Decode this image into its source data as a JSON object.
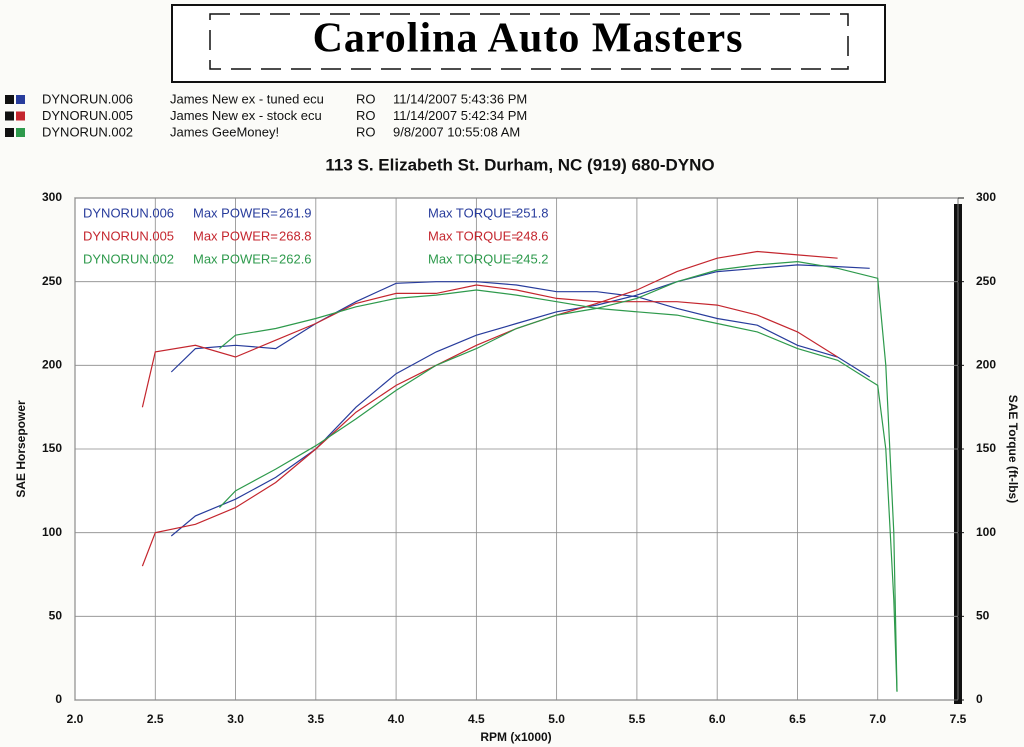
{
  "chart_data": {
    "type": "line",
    "logo": "Carolina Auto Masters",
    "subtitle": "113 S. Elizabeth St.  Durham, NC  (919) 680-DYNO",
    "xlabel": "RPM (x1000)",
    "ylabel": "SAE Horsepower",
    "y2label": "SAE Torque (ft-lbs)",
    "power_label": "Max POWER=",
    "torque_label": "Max TORQUE=",
    "xlim": [
      2.0,
      7.5
    ],
    "xticks": [
      {
        "value": 2,
        "label": "2.0"
      },
      2.5,
      {
        "value": 3,
        "label": "3.0"
      },
      3.5,
      {
        "value": 4,
        "label": "4.0"
      },
      4.5,
      {
        "value": 5,
        "label": "5.0"
      },
      5.5,
      {
        "value": 6,
        "label": "6.0"
      },
      6.5,
      {
        "value": 7,
        "label": "7.0"
      },
      7.5
    ],
    "ylim": [
      0,
      300
    ],
    "yticks": [
      0,
      50,
      100,
      150,
      200,
      250,
      300
    ],
    "y2lim": [
      0,
      300
    ],
    "y2ticks": [
      0,
      50,
      100,
      150,
      200,
      250,
      300
    ],
    "grid": true,
    "runs": [
      {
        "name": "DYNORUN.006",
        "description": "James New ex - tuned ecu",
        "flag": "RO",
        "date": "11/14/2007 5:43:36 PM",
        "color": "#283c9c",
        "max_power": 261.9,
        "max_torque": 251.8,
        "x": [
          2.6,
          2.75,
          3.0,
          3.25,
          3.5,
          3.75,
          4.0,
          4.25,
          4.5,
          4.75,
          5.0,
          5.25,
          5.5,
          5.75,
          6.0,
          6.25,
          6.5,
          6.75,
          6.95
        ],
        "power": [
          98,
          110,
          120,
          133,
          150,
          175,
          195,
          208,
          218,
          225,
          232,
          236,
          242,
          250,
          256,
          258,
          260,
          259,
          258
        ],
        "torque": [
          196,
          210,
          212,
          210,
          225,
          238,
          249,
          250,
          250,
          248,
          244,
          244,
          241,
          234,
          228,
          224,
          212,
          205,
          193
        ]
      },
      {
        "name": "DYNORUN.005",
        "description": "James New ex - stock ecu",
        "flag": "RO",
        "date": "11/14/2007 5:42:34 PM",
        "color": "#c4262e",
        "max_power": 268.8,
        "max_torque": 248.6,
        "x": [
          2.42,
          2.5,
          2.75,
          3.0,
          3.25,
          3.5,
          3.75,
          4.0,
          4.25,
          4.5,
          4.75,
          5.0,
          5.25,
          5.5,
          5.75,
          6.0,
          6.25,
          6.5,
          6.75
        ],
        "power": [
          80,
          100,
          105,
          115,
          130,
          150,
          172,
          188,
          200,
          212,
          222,
          230,
          237,
          245,
          256,
          264,
          268,
          266,
          264
        ],
        "torque": [
          175,
          208,
          212,
          205,
          215,
          225,
          237,
          243,
          243,
          248,
          245,
          240,
          238,
          238,
          238,
          236,
          230,
          220,
          205
        ]
      },
      {
        "name": "DYNORUN.002",
        "description": "James GeeMoney!",
        "flag": "RO",
        "date": "9/8/2007 10:55:08 AM",
        "color": "#2e9a4c",
        "max_power": 262.6,
        "max_torque": 245.2,
        "x": [
          2.9,
          3.0,
          3.25,
          3.5,
          3.75,
          4.0,
          4.25,
          4.5,
          4.75,
          5.0,
          5.25,
          5.5,
          5.75,
          6.0,
          6.25,
          6.5,
          6.75,
          7.0,
          7.05,
          7.1,
          7.12
        ],
        "power": [
          115,
          125,
          138,
          152,
          168,
          185,
          200,
          210,
          222,
          230,
          234,
          240,
          250,
          257,
          260,
          262,
          258,
          252,
          200,
          100,
          5
        ],
        "torque": [
          210,
          218,
          222,
          228,
          235,
          240,
          242,
          245,
          242,
          238,
          234,
          232,
          230,
          225,
          220,
          210,
          203,
          188,
          150,
          60,
          5
        ]
      }
    ]
  }
}
